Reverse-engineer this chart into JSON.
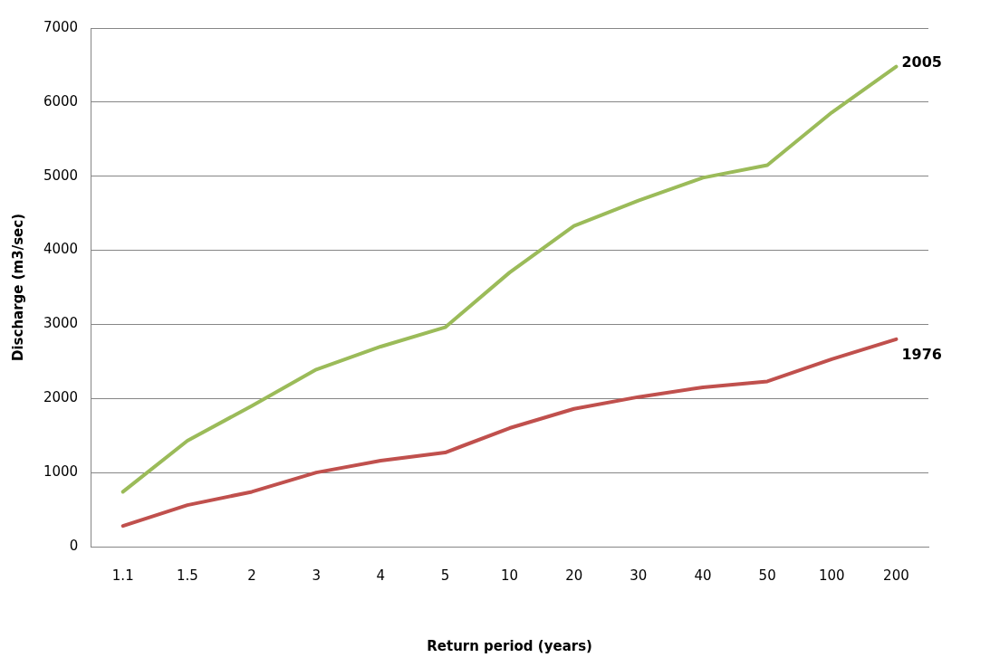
{
  "chart_data": {
    "type": "line",
    "xlabel": "Return period (years)",
    "ylabel": "Discharge (m3/sec)",
    "categories": [
      "1.1",
      "1.5",
      "2",
      "3",
      "4",
      "5",
      "10",
      "20",
      "30",
      "40",
      "50",
      "100",
      "200"
    ],
    "series": [
      {
        "name": "2005",
        "color": "#9bbb59",
        "values": [
          740,
          1430,
          1900,
          2390,
          2700,
          2960,
          3700,
          4330,
          4670,
          4980,
          5150,
          5860,
          6480
        ]
      },
      {
        "name": "1976",
        "color": "#c0504d",
        "values": [
          280,
          560,
          740,
          1000,
          1160,
          1270,
          1600,
          1860,
          2020,
          2150,
          2230,
          2530,
          2800
        ]
      }
    ],
    "ylim": [
      0,
      7000
    ],
    "yticks": [
      0,
      1000,
      2000,
      3000,
      4000,
      5000,
      6000,
      7000
    ],
    "grid": "y",
    "legend": false,
    "marker": "none",
    "line_style": "solid"
  }
}
